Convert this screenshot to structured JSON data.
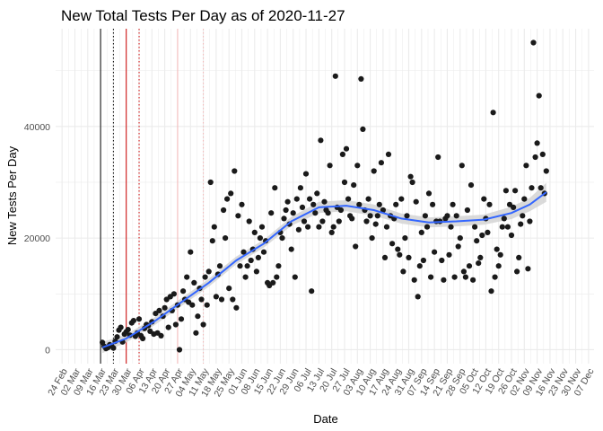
{
  "chart_data": {
    "type": "scatter",
    "title": "New Total Tests Per Day as of 2020-11-27",
    "xlabel": "Date",
    "ylabel": "New Tests Per Day",
    "x_tick_labels": [
      "24 Feb",
      "02 Mar",
      "09 Mar",
      "16 Mar",
      "23 Mar",
      "30 Mar",
      "06 Apr",
      "13 Apr",
      "20 Apr",
      "27 Apr",
      "04 May",
      "11 May",
      "18 May",
      "25 May",
      "01 Jun",
      "08 Jun",
      "15 Jun",
      "22 Jun",
      "29 Jun",
      "06 Jul",
      "13 Jul",
      "20 Jul",
      "27 Jul",
      "03 Aug",
      "10 Aug",
      "17 Aug",
      "24 Aug",
      "31 Aug",
      "07 Sep",
      "14 Sep",
      "21 Sep",
      "28 Sep",
      "05 Oct",
      "12 Oct",
      "19 Oct",
      "26 Oct",
      "02 Nov",
      "09 Nov",
      "16 Nov",
      "23 Nov",
      "30 Nov",
      "07 Dec"
    ],
    "y_ticks": [
      0,
      20000,
      40000
    ],
    "y_tick_labels": [
      "0",
      "20000",
      "40000"
    ],
    "xlim": [
      -3.5,
      290
    ],
    "ylim": [
      -2500,
      57500
    ],
    "grid": true,
    "vlines": [
      {
        "day": 21,
        "color": "#000000",
        "style": "solid"
      },
      {
        "day": 28,
        "color": "#000000",
        "style": "dotted"
      },
      {
        "day": 35,
        "color": "#cc0000",
        "style": "solid"
      },
      {
        "day": 42,
        "color": "#cc0000",
        "style": "dotted"
      },
      {
        "day": 63,
        "color": "#f4b6b6",
        "style": "solid"
      },
      {
        "day": 77,
        "color": "#f4b6b6",
        "style": "dotted"
      }
    ],
    "points": [
      [
        22,
        1300
      ],
      [
        23,
        600
      ],
      [
        24,
        200
      ],
      [
        25,
        400
      ],
      [
        26,
        900
      ],
      [
        27,
        700
      ],
      [
        28,
        300
      ],
      [
        29,
        1500
      ],
      [
        30,
        2300
      ],
      [
        31,
        3500
      ],
      [
        32,
        4000
      ],
      [
        33,
        1400
      ],
      [
        34,
        2800
      ],
      [
        35,
        3200
      ],
      [
        36,
        3600
      ],
      [
        37,
        2600
      ],
      [
        38,
        4800
      ],
      [
        39,
        5200
      ],
      [
        40,
        2400
      ],
      [
        41,
        3000
      ],
      [
        42,
        5500
      ],
      [
        43,
        2500
      ],
      [
        44,
        2000
      ],
      [
        45,
        3800
      ],
      [
        46,
        4500
      ],
      [
        47,
        4300
      ],
      [
        48,
        3300
      ],
      [
        49,
        5000
      ],
      [
        50,
        2800
      ],
      [
        51,
        6500
      ],
      [
        52,
        3000
      ],
      [
        53,
        7000
      ],
      [
        54,
        2500
      ],
      [
        55,
        6000
      ],
      [
        56,
        7500
      ],
      [
        57,
        9000
      ],
      [
        58,
        4000
      ],
      [
        59,
        9500
      ],
      [
        60,
        7000
      ],
      [
        61,
        10000
      ],
      [
        62,
        4500
      ],
      [
        63,
        8000
      ],
      [
        64,
        0
      ],
      [
        65,
        5500
      ],
      [
        66,
        10500
      ],
      [
        67,
        9000
      ],
      [
        68,
        13000
      ],
      [
        69,
        8500
      ],
      [
        70,
        17500
      ],
      [
        71,
        8000
      ],
      [
        72,
        12000
      ],
      [
        73,
        3000
      ],
      [
        74,
        6000
      ],
      [
        75,
        11000
      ],
      [
        76,
        9000
      ],
      [
        77,
        4500
      ],
      [
        78,
        13000
      ],
      [
        79,
        8000
      ],
      [
        80,
        14000
      ],
      [
        81,
        30000
      ],
      [
        82,
        19500
      ],
      [
        83,
        22000
      ],
      [
        84,
        9500
      ],
      [
        85,
        13500
      ],
      [
        86,
        15000
      ],
      [
        87,
        9000
      ],
      [
        88,
        25000
      ],
      [
        89,
        20000
      ],
      [
        90,
        27000
      ],
      [
        91,
        11000
      ],
      [
        92,
        28000
      ],
      [
        93,
        9000
      ],
      [
        94,
        32000
      ],
      [
        95,
        7500
      ],
      [
        96,
        24000
      ],
      [
        97,
        15000
      ],
      [
        98,
        26000
      ],
      [
        99,
        17500
      ],
      [
        100,
        13000
      ],
      [
        101,
        15000
      ],
      [
        102,
        23000
      ],
      [
        103,
        16000
      ],
      [
        104,
        18000
      ],
      [
        105,
        21000
      ],
      [
        106,
        14000
      ],
      [
        107,
        16500
      ],
      [
        108,
        20000
      ],
      [
        109,
        22000
      ],
      [
        110,
        17500
      ],
      [
        111,
        19500
      ],
      [
        112,
        12000
      ],
      [
        113,
        11500
      ],
      [
        114,
        24500
      ],
      [
        115,
        12000
      ],
      [
        116,
        29000
      ],
      [
        117,
        13000
      ],
      [
        118,
        15000
      ],
      [
        119,
        21000
      ],
      [
        120,
        20000
      ],
      [
        121,
        23500
      ],
      [
        122,
        25000
      ],
      [
        123,
        26500
      ],
      [
        124,
        22500
      ],
      [
        125,
        18000
      ],
      [
        126,
        24500
      ],
      [
        127,
        13000
      ],
      [
        128,
        27000
      ],
      [
        129,
        21500
      ],
      [
        130,
        29000
      ],
      [
        131,
        25500
      ],
      [
        132,
        23000
      ],
      [
        133,
        31500
      ],
      [
        134,
        22000
      ],
      [
        135,
        27000
      ],
      [
        136,
        10500
      ],
      [
        137,
        26000
      ],
      [
        138,
        24500
      ],
      [
        139,
        28000
      ],
      [
        140,
        22000
      ],
      [
        141,
        37500
      ],
      [
        142,
        23000
      ],
      [
        143,
        26500
      ],
      [
        144,
        25000
      ],
      [
        145,
        24500
      ],
      [
        146,
        33000
      ],
      [
        147,
        21000
      ],
      [
        148,
        22000
      ],
      [
        149,
        49000
      ],
      [
        150,
        25500
      ],
      [
        151,
        23000
      ],
      [
        152,
        25000
      ],
      [
        153,
        35000
      ],
      [
        154,
        30000
      ],
      [
        155,
        36000
      ],
      [
        156,
        27000
      ],
      [
        157,
        24000
      ],
      [
        158,
        23500
      ],
      [
        159,
        29500
      ],
      [
        160,
        18500
      ],
      [
        161,
        33000
      ],
      [
        162,
        26000
      ],
      [
        163,
        48500
      ],
      [
        164,
        39500
      ],
      [
        165,
        25000
      ],
      [
        166,
        23000
      ],
      [
        167,
        27000
      ],
      [
        168,
        24000
      ],
      [
        169,
        20000
      ],
      [
        170,
        32000
      ],
      [
        171,
        22500
      ],
      [
        172,
        24000
      ],
      [
        173,
        26000
      ],
      [
        174,
        33500
      ],
      [
        175,
        25000
      ],
      [
        176,
        16500
      ],
      [
        177,
        22000
      ],
      [
        178,
        35000
      ],
      [
        179,
        24000
      ],
      [
        180,
        19000
      ],
      [
        181,
        23500
      ],
      [
        182,
        26000
      ],
      [
        183,
        18000
      ],
      [
        184,
        17000
      ],
      [
        185,
        27000
      ],
      [
        186,
        14000
      ],
      [
        187,
        20000
      ],
      [
        188,
        24000
      ],
      [
        189,
        16500
      ],
      [
        190,
        31000
      ],
      [
        191,
        30000
      ],
      [
        192,
        12500
      ],
      [
        193,
        26500
      ],
      [
        194,
        9500
      ],
      [
        195,
        15000
      ],
      [
        196,
        21000
      ],
      [
        197,
        16000
      ],
      [
        198,
        24000
      ],
      [
        199,
        22000
      ],
      [
        200,
        28000
      ],
      [
        201,
        13000
      ],
      [
        202,
        26000
      ],
      [
        203,
        17500
      ],
      [
        204,
        23000
      ],
      [
        205,
        34500
      ],
      [
        206,
        23000
      ],
      [
        207,
        16000
      ],
      [
        208,
        12500
      ],
      [
        209,
        23500
      ],
      [
        210,
        24000
      ],
      [
        211,
        17000
      ],
      [
        212,
        22000
      ],
      [
        213,
        26000
      ],
      [
        214,
        13000
      ],
      [
        215,
        24000
      ],
      [
        216,
        18500
      ],
      [
        217,
        20000
      ],
      [
        218,
        33000
      ],
      [
        219,
        14000
      ],
      [
        220,
        13000
      ],
      [
        221,
        25000
      ],
      [
        222,
        15000
      ],
      [
        223,
        29500
      ],
      [
        224,
        12500
      ],
      [
        225,
        22000
      ],
      [
        226,
        19500
      ],
      [
        227,
        15500
      ],
      [
        228,
        16500
      ],
      [
        229,
        20500
      ],
      [
        230,
        27000
      ],
      [
        231,
        23500
      ],
      [
        232,
        21000
      ],
      [
        233,
        26000
      ],
      [
        234,
        10500
      ],
      [
        235,
        42500
      ],
      [
        236,
        13000
      ],
      [
        237,
        18000
      ],
      [
        238,
        15000
      ],
      [
        239,
        17000
      ],
      [
        240,
        22000
      ],
      [
        241,
        23500
      ],
      [
        242,
        28500
      ],
      [
        243,
        22000
      ],
      [
        244,
        26000
      ],
      [
        245,
        20500
      ],
      [
        246,
        25500
      ],
      [
        247,
        28500
      ],
      [
        248,
        14000
      ],
      [
        249,
        16500
      ],
      [
        250,
        22500
      ],
      [
        251,
        24000
      ],
      [
        252,
        27000
      ],
      [
        253,
        33000
      ],
      [
        254,
        14500
      ],
      [
        255,
        23000
      ],
      [
        256,
        29000
      ],
      [
        257,
        55000
      ],
      [
        258,
        34500
      ],
      [
        259,
        37000
      ],
      [
        260,
        45500
      ],
      [
        261,
        29000
      ],
      [
        262,
        35000
      ],
      [
        263,
        28000
      ],
      [
        264,
        32000
      ]
    ],
    "smooth_fit": [
      [
        22,
        400
      ],
      [
        35,
        2000
      ],
      [
        50,
        5000
      ],
      [
        65,
        8500
      ],
      [
        80,
        12000
      ],
      [
        95,
        16000
      ],
      [
        110,
        19000
      ],
      [
        125,
        23000
      ],
      [
        140,
        25500
      ],
      [
        155,
        25800
      ],
      [
        170,
        25000
      ],
      [
        185,
        23500
      ],
      [
        200,
        22800
      ],
      [
        215,
        23000
      ],
      [
        230,
        23300
      ],
      [
        245,
        24500
      ],
      [
        255,
        26000
      ],
      [
        264,
        28200
      ]
    ],
    "smooth_band": {
      "lower": [
        -600,
        1300,
        4300,
        7800,
        11300,
        15300,
        18300,
        22200,
        24500,
        24800,
        24000,
        22600,
        21900,
        22100,
        22400,
        23400,
        24800,
        26500
      ],
      "upper": [
        1400,
        2700,
        5700,
        9200,
        12700,
        16700,
        19700,
        23800,
        26500,
        26800,
        26000,
        24400,
        23700,
        23900,
        24200,
        25600,
        27200,
        29900
      ]
    },
    "colors": {
      "points": "#1a1a1a",
      "smooth": "#3366ff",
      "band": "#d3d3d3",
      "grid": "#ebebeb"
    }
  }
}
